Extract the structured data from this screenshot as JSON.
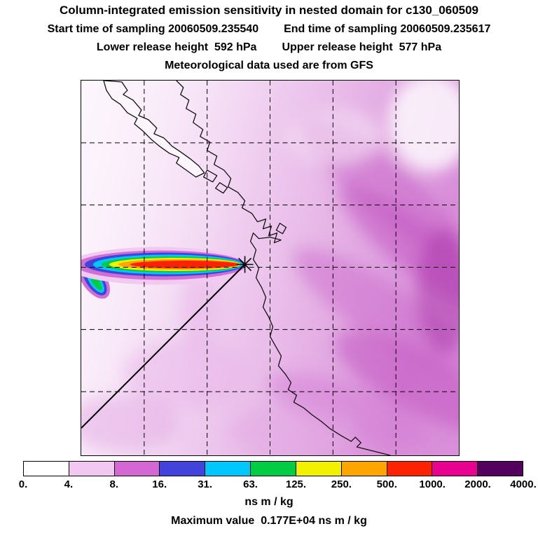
{
  "header": {
    "title": "Column-integrated emission sensitivity in nested domain for c130_060509",
    "start_time": "Start time of sampling 20060509.235540",
    "end_time": "End time of sampling 20060509.235617",
    "lower_release": "Lower release height  592 hPa",
    "upper_release": "Upper release height  577 hPa",
    "met_data": "Meteorological data used are from GFS"
  },
  "footer": {
    "units_label": "ns m / kg",
    "max_value_label": "Maximum value  0.177E+04 ns m / kg"
  },
  "chart_data": {
    "type": "heatmap",
    "title": "Column-integrated emission sensitivity in nested domain for c130_060509",
    "subtitle_lines": [
      "Start time of sampling 20060509.235540    End time of sampling 20060509.235617",
      "Lower release height  592 hPa    Upper release height  577 hPa",
      "Meteorological data used are from GFS"
    ],
    "units": "ns m / kg",
    "sampling": {
      "start": "20060509.235540",
      "end": "20060509.235617"
    },
    "release_heights_hpa": {
      "lower": 592,
      "upper": 577
    },
    "meteorology_source": "GFS",
    "maximum_value": {
      "label": "Maximum value  0.177E+04 ns m / kg",
      "value_ns_m_per_kg": 1770
    },
    "colorbar": {
      "orientation": "horizontal",
      "boundaries_ns_m_per_kg": [
        0,
        4,
        8,
        16,
        31,
        63,
        125,
        250,
        500,
        1000,
        2000,
        4000
      ],
      "tick_labels": [
        "0.",
        "4.",
        "8.",
        "16.",
        "31.",
        "63.",
        "125.",
        "250.",
        "500.",
        "1000.",
        "2000.",
        "4000."
      ],
      "colors": [
        "#ffffff",
        "#f2c8f2",
        "#d467d4",
        "#4242dd",
        "#00c8ff",
        "#00cc44",
        "#f2f200",
        "#ffa500",
        "#ff2200",
        "#ea0090",
        "#53005e"
      ]
    },
    "map": {
      "region": "Pacific Northwest coast (Vancouver Island, Washington, Oregon, California)",
      "grid": "dashed lat/lon grid, 5 vertical and 5 horizontal lines",
      "release_marker": "black asterisk at plume head just offshore",
      "plume": "rainbow-banded high-sensitivity plume extending west from the release point",
      "trajectory_line": "straight black line from the southwest boundary to the release point",
      "background": "diffuse magenta/violet sensitivity field, strongest toward the east"
    }
  }
}
